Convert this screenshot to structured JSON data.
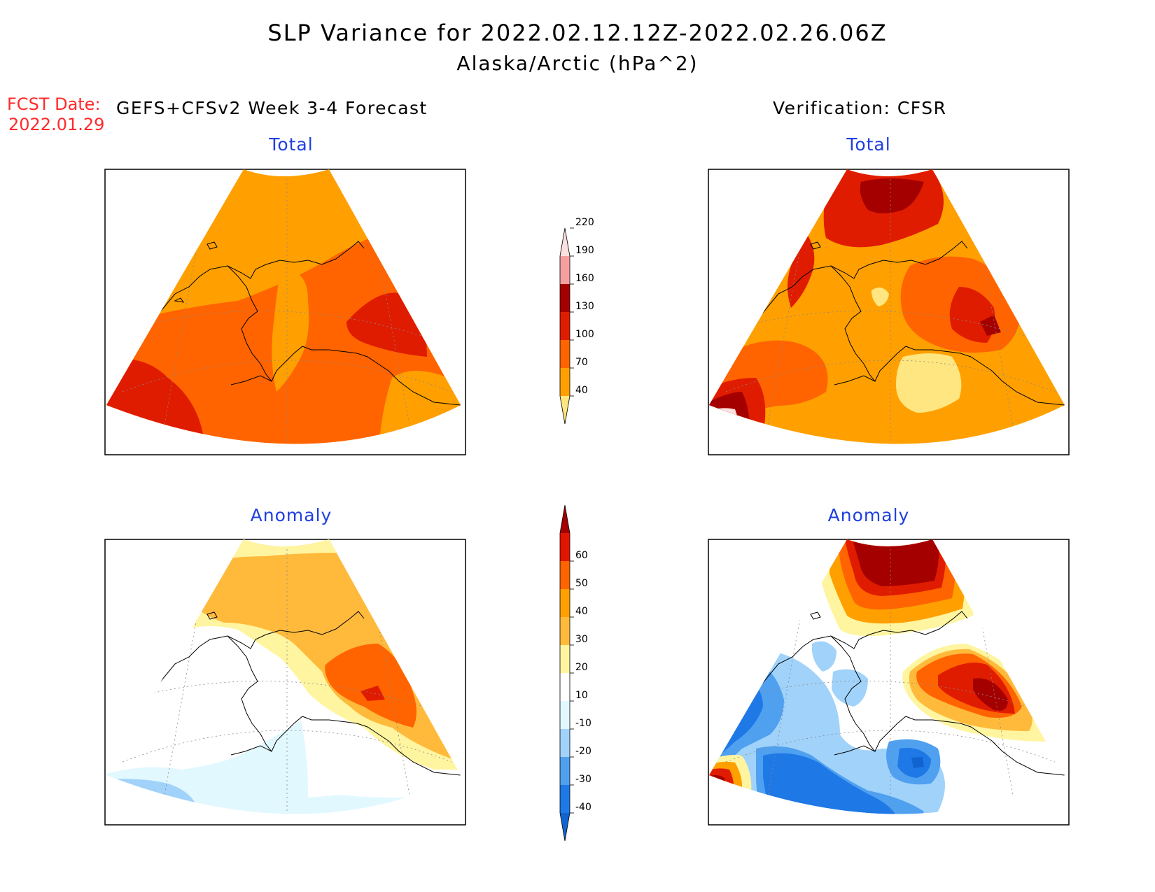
{
  "header": {
    "title": "SLP Variance for 2022.02.12.12Z-2022.02.26.06Z",
    "subtitle": "Alaska/Arctic (hPa^2)",
    "fcst_label": "FCST Date:",
    "fcst_date": "2022.01.29",
    "left_column_title": "GEFS+CFSv2 Week 3-4 Forecast",
    "right_column_title": "Verification: CFSR"
  },
  "panels": [
    {
      "id": "forecast-total",
      "title": "Total"
    },
    {
      "id": "verification-total",
      "title": "Total"
    },
    {
      "id": "forecast-anomaly",
      "title": "Anomaly"
    },
    {
      "id": "verification-anomaly",
      "title": "Anomaly"
    }
  ],
  "colorbars": {
    "total": {
      "ticks": [
        "40",
        "70",
        "100",
        "130",
        "160",
        "190",
        "220"
      ],
      "colors": [
        "#ffe680",
        "#ffa000",
        "#ff6400",
        "#e01c00",
        "#a50000",
        "#f4a0a0",
        "#fde0e0"
      ]
    },
    "anomaly": {
      "ticks": [
        "-40",
        "-30",
        "-20",
        "-10",
        "10",
        "20",
        "30",
        "40",
        "50",
        "60"
      ],
      "colors": [
        "#1064d0",
        "#1e78e6",
        "#50a0f0",
        "#a0d2fa",
        "#e1f8ff",
        "#ffffff",
        "#fff5a0",
        "#ffba3c",
        "#ffa000",
        "#ff6400",
        "#e11400",
        "#a50000"
      ]
    }
  }
}
